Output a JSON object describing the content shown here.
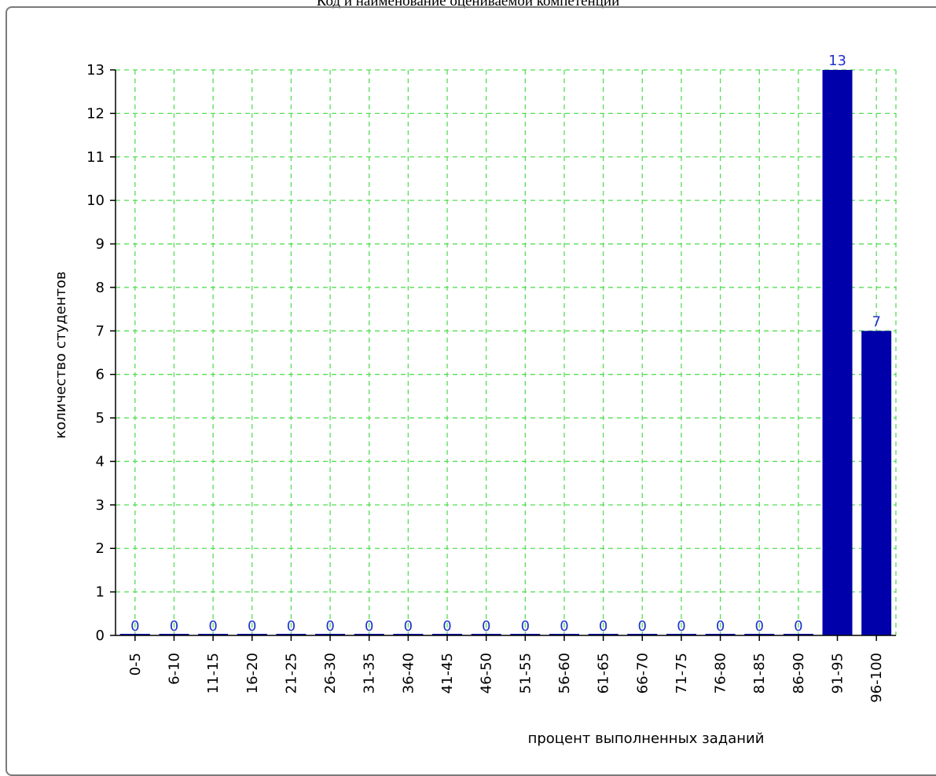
{
  "page_title": "Код и наименование оцениваемой компетенции",
  "chart_data": {
    "type": "bar",
    "title": "",
    "xlabel": "процент выполненных заданий",
    "ylabel": "количество студентов",
    "categories": [
      "0-5",
      "6-10",
      "11-15",
      "16-20",
      "21-25",
      "26-30",
      "31-35",
      "36-40",
      "41-45",
      "46-50",
      "51-55",
      "56-60",
      "61-65",
      "66-70",
      "71-75",
      "76-80",
      "81-85",
      "86-90",
      "91-95",
      "96-100"
    ],
    "values": [
      0,
      0,
      0,
      0,
      0,
      0,
      0,
      0,
      0,
      0,
      0,
      0,
      0,
      0,
      0,
      0,
      0,
      0,
      13,
      7
    ],
    "ylim": [
      0,
      13
    ],
    "yticks": [
      0,
      1,
      2,
      3,
      4,
      5,
      6,
      7,
      8,
      9,
      10,
      11,
      12,
      13
    ],
    "grid": true,
    "colors": {
      "bar": "#0000aa",
      "value_label": "#2233cc",
      "grid": "#55dd55"
    }
  }
}
